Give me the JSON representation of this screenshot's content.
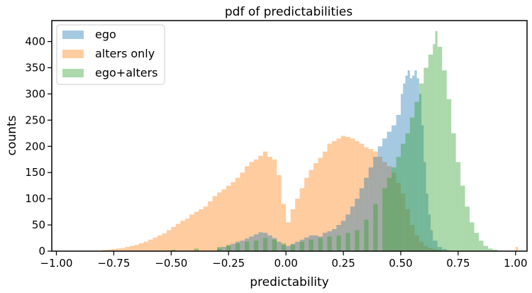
{
  "chart_data": {
    "type": "bar",
    "title": "pdf of predictabilities",
    "xlabel": "predictability",
    "ylabel": "counts",
    "xlim": [
      -1.02,
      1.05
    ],
    "ylim": [
      0,
      440
    ],
    "x_ticks": [
      -1.0,
      -0.75,
      -0.5,
      -0.25,
      0.0,
      0.25,
      0.5,
      0.75,
      1.0
    ],
    "x_tick_labels": [
      "−1.00",
      "−0.75",
      "−0.50",
      "−0.25",
      "0.00",
      "0.25",
      "0.50",
      "0.75",
      "1.00"
    ],
    "y_ticks": [
      0,
      50,
      100,
      150,
      200,
      250,
      300,
      350,
      400
    ],
    "y_tick_labels": [
      "0",
      "50",
      "100",
      "150",
      "200",
      "250",
      "300",
      "350",
      "400"
    ],
    "grid": false,
    "legend_position": "top-left",
    "bin_width": 0.01,
    "series": [
      {
        "name": "ego",
        "color": "#1f77b4",
        "x": [
          -0.3,
          -0.28,
          -0.26,
          -0.24,
          -0.22,
          -0.2,
          -0.18,
          -0.16,
          -0.14,
          -0.12,
          -0.1,
          -0.08,
          -0.06,
          -0.04,
          -0.02,
          0.0,
          0.02,
          0.04,
          0.06,
          0.08,
          0.1,
          0.12,
          0.14,
          0.16,
          0.18,
          0.2,
          0.22,
          0.24,
          0.26,
          0.28,
          0.3,
          0.32,
          0.34,
          0.36,
          0.38,
          0.4,
          0.42,
          0.44,
          0.46,
          0.48,
          0.5,
          0.51,
          0.52,
          0.53,
          0.54,
          0.55,
          0.56,
          0.57,
          0.58,
          0.59,
          0.6,
          0.61,
          0.62,
          0.63,
          0.64,
          0.66,
          0.68,
          0.7
        ],
        "values": [
          5,
          8,
          10,
          14,
          18,
          20,
          24,
          28,
          32,
          36,
          35,
          30,
          25,
          18,
          12,
          10,
          14,
          18,
          22,
          26,
          30,
          30,
          28,
          35,
          38,
          42,
          50,
          58,
          70,
          85,
          100,
          120,
          140,
          160,
          180,
          200,
          215,
          228,
          240,
          260,
          300,
          320,
          335,
          345,
          330,
          335,
          345,
          330,
          300,
          240,
          170,
          110,
          70,
          40,
          20,
          8,
          4,
          2
        ]
      },
      {
        "name": "alters only",
        "color": "#ff7f0e",
        "x": [
          -0.8,
          -0.78,
          -0.76,
          -0.74,
          -0.72,
          -0.7,
          -0.68,
          -0.66,
          -0.64,
          -0.62,
          -0.6,
          -0.58,
          -0.56,
          -0.54,
          -0.52,
          -0.5,
          -0.48,
          -0.46,
          -0.44,
          -0.42,
          -0.4,
          -0.38,
          -0.36,
          -0.34,
          -0.32,
          -0.3,
          -0.28,
          -0.26,
          -0.24,
          -0.22,
          -0.2,
          -0.18,
          -0.16,
          -0.14,
          -0.12,
          -0.1,
          -0.08,
          -0.06,
          -0.04,
          -0.02,
          0.0,
          0.02,
          0.04,
          0.06,
          0.08,
          0.1,
          0.12,
          0.14,
          0.16,
          0.18,
          0.2,
          0.22,
          0.24,
          0.26,
          0.28,
          0.3,
          0.32,
          0.34,
          0.36,
          0.38,
          0.4,
          0.42,
          0.44,
          0.46,
          0.48,
          0.5,
          0.52,
          0.54,
          0.56,
          0.58,
          0.6,
          0.62,
          0.64,
          0.66,
          0.68,
          1.0
        ],
        "values": [
          2,
          3,
          4,
          5,
          6,
          8,
          10,
          12,
          15,
          18,
          22,
          26,
          30,
          34,
          40,
          46,
          52,
          58,
          62,
          70,
          75,
          80,
          85,
          95,
          105,
          112,
          118,
          125,
          132,
          140,
          150,
          162,
          170,
          175,
          182,
          190,
          180,
          175,
          145,
          90,
          55,
          80,
          100,
          120,
          140,
          155,
          168,
          178,
          190,
          205,
          210,
          215,
          220,
          218,
          215,
          210,
          205,
          198,
          195,
          190,
          180,
          170,
          162,
          150,
          130,
          110,
          80,
          50,
          30,
          18,
          10,
          6,
          4,
          2,
          1,
          8
        ]
      },
      {
        "name": "ego+alters",
        "color": "#2ca02c",
        "x": [
          -0.5,
          -0.4,
          -0.3,
          -0.26,
          -0.22,
          -0.18,
          -0.14,
          -0.1,
          -0.06,
          -0.02,
          0.02,
          0.06,
          0.1,
          0.14,
          0.18,
          0.22,
          0.26,
          0.3,
          0.34,
          0.38,
          0.42,
          0.44,
          0.46,
          0.48,
          0.5,
          0.52,
          0.54,
          0.56,
          0.58,
          0.6,
          0.62,
          0.64,
          0.65,
          0.66,
          0.68,
          0.7,
          0.72,
          0.74,
          0.76,
          0.78,
          0.8,
          0.82,
          0.84,
          0.86,
          0.88,
          0.9,
          0.92
        ],
        "values": [
          3,
          5,
          8,
          12,
          15,
          18,
          20,
          25,
          22,
          15,
          12,
          18,
          22,
          25,
          28,
          30,
          35,
          40,
          60,
          90,
          120,
          140,
          160,
          180,
          205,
          225,
          255,
          285,
          320,
          350,
          375,
          395,
          420,
          390,
          345,
          290,
          225,
          170,
          125,
          85,
          55,
          35,
          20,
          10,
          5,
          3,
          1
        ]
      }
    ]
  }
}
